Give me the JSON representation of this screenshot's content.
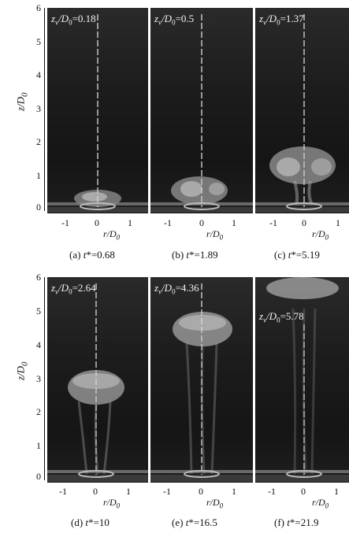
{
  "y_axis_label": "z/D",
  "y_axis_sub": "0",
  "x_axis_label": "r/D",
  "x_axis_sub": "0",
  "y_ticks": [
    "0",
    "1",
    "2",
    "3",
    "4",
    "5",
    "6"
  ],
  "x_ticks": [
    "-1",
    "0",
    "1"
  ],
  "panels": [
    {
      "zv_prefix": "z",
      "zv_sub": "v",
      "zv_mid": "/D",
      "zv_sub2": "0",
      "zv_value": "=0.18",
      "caption_letter": "(a)",
      "caption_t": "t",
      "caption_value": "*=0.68"
    },
    {
      "zv_prefix": "z",
      "zv_sub": "v",
      "zv_mid": "/D",
      "zv_sub2": "0",
      "zv_value": "=0.5",
      "caption_letter": "(b)",
      "caption_t": "t",
      "caption_value": "*=1.89"
    },
    {
      "zv_prefix": "z",
      "zv_sub": "v",
      "zv_mid": "/D",
      "zv_sub2": "0",
      "zv_value": "=1.37",
      "caption_letter": "(c)",
      "caption_t": "t",
      "caption_value": "*=5.19"
    },
    {
      "zv_prefix": "z",
      "zv_sub": "v",
      "zv_mid": "/D",
      "zv_sub2": "0",
      "zv_value": "=2.64",
      "caption_letter": "(d)",
      "caption_t": "t",
      "caption_value": "*=10"
    },
    {
      "zv_prefix": "z",
      "zv_sub": "v",
      "zv_mid": "/D",
      "zv_sub2": "0",
      "zv_value": "=4.36",
      "caption_letter": "(e)",
      "caption_t": "t",
      "caption_value": "*=16.5"
    },
    {
      "zv_prefix": "z",
      "zv_sub": "v",
      "zv_mid": "/D",
      "zv_sub2": "0",
      "zv_value": "=5.78",
      "caption_letter": "(f)",
      "caption_t": "t",
      "caption_value": "*=21.9"
    }
  ],
  "colors": {
    "background": "#1a1a1a",
    "vortex": "#d8d8d8",
    "centerline": "#e8e8e8"
  }
}
